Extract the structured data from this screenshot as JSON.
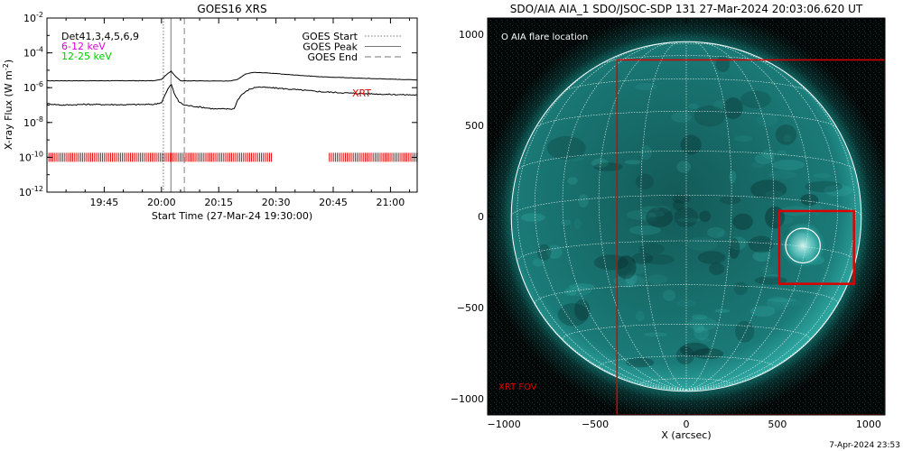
{
  "chart_data": [
    {
      "type": "line",
      "title": "GOES16 XRS",
      "xlabel": "Start Time (27-Mar-24 19:30:00)",
      "ylabel": "X-ray Flux (W m",
      "ylabel_sup": "-2",
      "ylabel_close": ")",
      "y_scale": "log",
      "ylim": [
        1e-12,
        0.01
      ],
      "xlim_minutes": [
        0,
        97
      ],
      "x_ticks": [
        {
          "label": "19:45",
          "minute": 15
        },
        {
          "label": "20:00",
          "minute": 30
        },
        {
          "label": "20:15",
          "minute": 45
        },
        {
          "label": "20:30",
          "minute": 60
        },
        {
          "label": "20:45",
          "minute": 75
        },
        {
          "label": "21:00",
          "minute": 90
        }
      ],
      "y_ticks": [
        {
          "mantissa": "10",
          "exp": "-2",
          "value": 0.01
        },
        {
          "mantissa": "10",
          "exp": "-4",
          "value": 0.0001
        },
        {
          "mantissa": "10",
          "exp": "-6",
          "value": 1e-06
        },
        {
          "mantissa": "10",
          "exp": "-8",
          "value": 1e-08
        },
        {
          "mantissa": "10",
          "exp": "-10",
          "value": 1e-10
        },
        {
          "mantissa": "10",
          "exp": "-12",
          "value": 1e-12
        }
      ],
      "annotations": {
        "detectors": "Det41,3,4,5,6,9",
        "band_low": "6-12 keV",
        "band_high": "12-25 keV",
        "xrt": "XRT"
      },
      "legend": {
        "position": "top-right",
        "entries": [
          {
            "label": "GOES Start",
            "style": "dotted"
          },
          {
            "label": "GOES Peak",
            "style": "solid"
          },
          {
            "label": "GOES End",
            "style": "dashed"
          }
        ]
      },
      "event_lines": [
        {
          "name": "GOES Start",
          "minute": 30.5
        },
        {
          "name": "GOES Peak",
          "minute": 32.5
        },
        {
          "name": "GOES End",
          "minute": 36.0
        }
      ],
      "series": [
        {
          "color": "#000000",
          "points": [
            [
              0,
              2.5e-06
            ],
            [
              28,
              2.5e-06
            ],
            [
              30,
              3e-06
            ],
            [
              31.5,
              6e-06
            ],
            [
              32.5,
              9e-06
            ],
            [
              33.5,
              5e-06
            ],
            [
              35,
              2.5e-06
            ],
            [
              48,
              2.4e-06
            ],
            [
              50,
              3e-06
            ],
            [
              52,
              6e-06
            ],
            [
              54,
              7.5e-06
            ],
            [
              58,
              7e-06
            ],
            [
              64,
              5.5e-06
            ],
            [
              72,
              4.2e-06
            ],
            [
              82,
              3.5e-06
            ],
            [
              90,
              3.1e-06
            ],
            [
              97,
              2.8e-06
            ]
          ]
        },
        {
          "color": "#000000",
          "points": [
            [
              0,
              1.2e-07
            ],
            [
              4,
              1e-07
            ],
            [
              10,
              1.1e-07
            ],
            [
              20,
              1.05e-07
            ],
            [
              28,
              1.1e-07
            ],
            [
              30,
              1.4e-07
            ],
            [
              31,
              4e-07
            ],
            [
              32,
              1.1e-06
            ],
            [
              32.6,
              1.5e-06
            ],
            [
              33.3,
              5e-07
            ],
            [
              34.5,
              1.6e-07
            ],
            [
              36,
              1e-07
            ],
            [
              44,
              6e-08
            ],
            [
              49,
              6e-08
            ],
            [
              50,
              2e-07
            ],
            [
              51,
              4e-07
            ],
            [
              53,
              8e-07
            ],
            [
              55,
              1.1e-06
            ],
            [
              60,
              9.5e-07
            ],
            [
              66,
              7.5e-07
            ],
            [
              72,
              5.8e-07
            ],
            [
              80,
              4.8e-07
            ],
            [
              90,
              4.1e-07
            ],
            [
              97,
              3.8e-07
            ]
          ]
        }
      ],
      "xrt_coverage": {
        "color": "#dd0000",
        "flux_level": 1e-10,
        "intervals_minutes": [
          [
            0,
            59
          ],
          [
            74,
            97
          ]
        ]
      }
    },
    {
      "type": "image",
      "title": "SDO/AIA AIA_1 SDO/JSOC-SDP 131 27-Mar-2024 20:03:06.620 UT",
      "xlabel": "X (arcsec)",
      "ylabel": "",
      "xlim": [
        -1090,
        1090
      ],
      "ylim": [
        -1090,
        1090
      ],
      "x_ticks": [
        -1000,
        -500,
        0,
        500,
        1000
      ],
      "y_ticks": [
        -1000,
        -500,
        0,
        500,
        1000
      ],
      "x_tick_labels": [
        "−1000",
        "−500",
        "0",
        "500",
        "1000"
      ],
      "y_tick_labels": [
        "−1000",
        "−500",
        "0",
        "500",
        "1000"
      ],
      "solar_radius_arcsec": 960,
      "flare_label": "O AIA flare location",
      "flare_location": {
        "x": 640,
        "y": -160,
        "r": 95
      },
      "xrt_fov_label": "XRT FOV",
      "xrt_fov": {
        "x0": -380,
        "x1": 1090,
        "y0": -1090,
        "y1": 860
      },
      "flare_box": {
        "x0": 510,
        "x1": 920,
        "y0": -370,
        "y1": 30
      },
      "colors": {
        "disk": "#1b7f7c",
        "corona": "#1fd7cf",
        "background": "#030606",
        "fov": "#dd0000"
      }
    }
  ],
  "timestamp": "7-Apr-2024 23:53"
}
